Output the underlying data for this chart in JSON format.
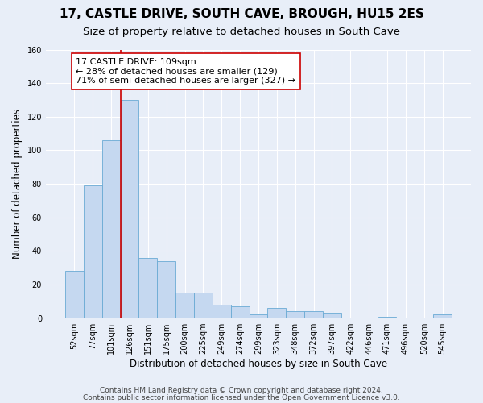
{
  "title1": "17, CASTLE DRIVE, SOUTH CAVE, BROUGH, HU15 2ES",
  "title2": "Size of property relative to detached houses in South Cave",
  "xlabel": "Distribution of detached houses by size in South Cave",
  "ylabel": "Number of detached properties",
  "bar_labels": [
    "52sqm",
    "77sqm",
    "101sqm",
    "126sqm",
    "151sqm",
    "175sqm",
    "200sqm",
    "225sqm",
    "249sqm",
    "274sqm",
    "299sqm",
    "323sqm",
    "348sqm",
    "372sqm",
    "397sqm",
    "422sqm",
    "446sqm",
    "471sqm",
    "496sqm",
    "520sqm",
    "545sqm"
  ],
  "bar_values": [
    28,
    79,
    106,
    130,
    36,
    34,
    15,
    15,
    8,
    7,
    2,
    6,
    4,
    4,
    3,
    0,
    0,
    1,
    0,
    0,
    2
  ],
  "bar_color": "#c5d8f0",
  "bar_edge_color": "#6aaad4",
  "vline_color": "#cc0000",
  "annotation_text": "17 CASTLE DRIVE: 109sqm\n← 28% of detached houses are smaller (129)\n71% of semi-detached houses are larger (327) →",
  "annotation_box_color": "#ffffff",
  "annotation_border_color": "#cc0000",
  "ylim": [
    0,
    160
  ],
  "yticks": [
    0,
    20,
    40,
    60,
    80,
    100,
    120,
    140,
    160
  ],
  "background_color": "#e8eef8",
  "plot_background": "#e8eef8",
  "grid_color": "#ffffff",
  "footer1": "Contains HM Land Registry data © Crown copyright and database right 2024.",
  "footer2": "Contains public sector information licensed under the Open Government Licence v3.0.",
  "title1_fontsize": 11,
  "title2_fontsize": 9.5,
  "xlabel_fontsize": 8.5,
  "ylabel_fontsize": 8.5,
  "tick_fontsize": 7,
  "annotation_fontsize": 8,
  "footer_fontsize": 6.5
}
